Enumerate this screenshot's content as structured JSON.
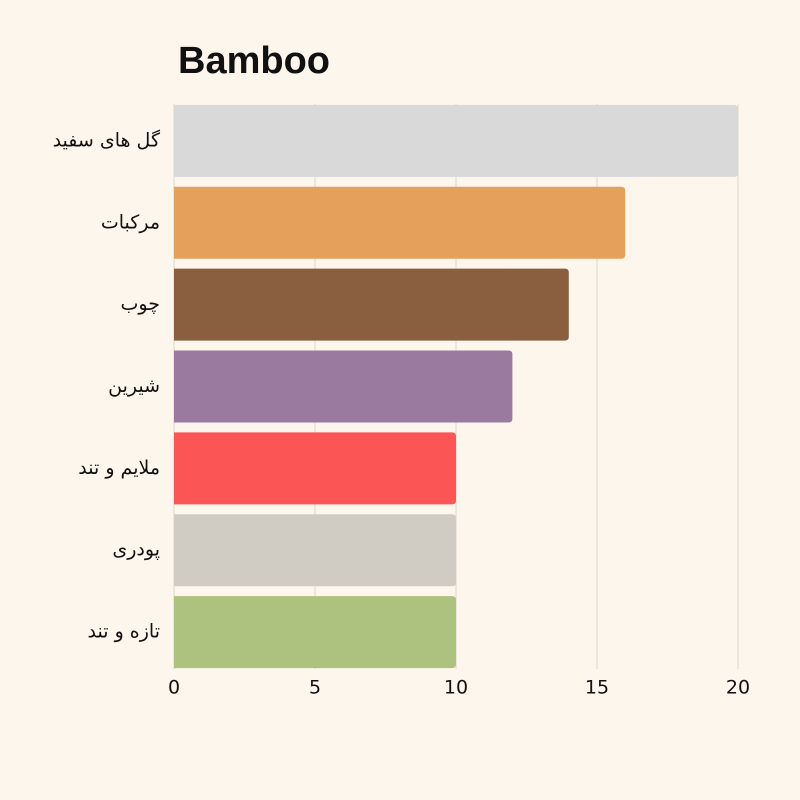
{
  "chart_data": {
    "type": "barh",
    "title": "Bamboo",
    "categories": [
      "گل های سفید",
      "مرکبات",
      "چوب",
      "شیرین",
      "ملایم و تند",
      "پودری",
      "تازه و تند"
    ],
    "values": [
      20,
      16,
      14,
      12,
      10,
      10,
      10
    ],
    "colors": [
      "#d9d9d9",
      "#e5a05c",
      "#8a5f3f",
      "#9a7a9e",
      "#fb5555",
      "#d0ccc4",
      "#aec27f"
    ],
    "xlim": [
      0,
      20
    ],
    "xticks": [
      0,
      5,
      10,
      15,
      20
    ],
    "grid": true
  }
}
